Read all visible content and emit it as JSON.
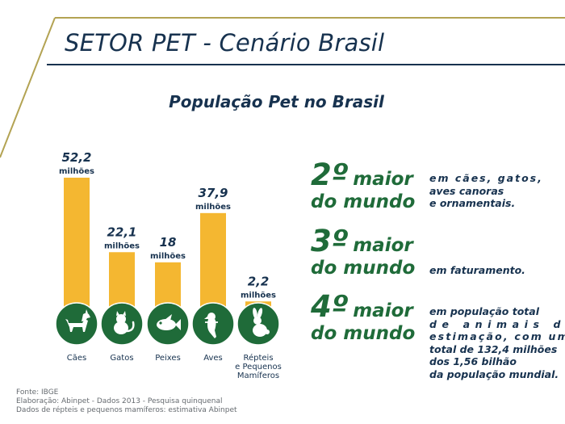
{
  "slide": {
    "title": "SETOR PET - Cenário Brasil",
    "colors": {
      "navy": "#17324f",
      "gold": "#b3a353",
      "green": "#1f6b39",
      "bar": "#f4b731"
    }
  },
  "chart_data": {
    "type": "bar",
    "title": "População Pet no Brasil",
    "categories": [
      "Cães",
      "Gatos",
      "Peixes",
      "Aves",
      "Répteis e Pequenos Mamíferos"
    ],
    "category_lines": [
      [
        "Cães"
      ],
      [
        "Gatos"
      ],
      [
        "Peixes"
      ],
      [
        "Aves"
      ],
      [
        "Répteis",
        "e Pequenos",
        "Mamíferos"
      ]
    ],
    "values": [
      52.2,
      22.1,
      18,
      37.9,
      2.2
    ],
    "value_labels": [
      "52,2",
      "22,1",
      "18",
      "37,9",
      "2,2"
    ],
    "unit_label": "milhões",
    "icons": [
      "dog-icon",
      "cat-icon",
      "fish-icon",
      "bird-icon",
      "rabbit-icon"
    ],
    "xlabel": "",
    "ylabel": "",
    "grid": false
  },
  "stats": [
    {
      "rank": "2º",
      "word": "maior",
      "sub": "do mundo",
      "desc": [
        "em cães, gatos,",
        "aves canoras",
        "e ornamentais."
      ]
    },
    {
      "rank": "3º",
      "word": "maior",
      "sub": "do mundo",
      "desc": [
        "em faturamento."
      ]
    },
    {
      "rank": "4º",
      "word": "maior",
      "sub": "do mundo",
      "desc": [
        "em população total",
        "de animais de",
        "estimação, com um",
        "total de 132,4 milhões",
        "dos 1,56 bilhão",
        "da população mundial."
      ]
    }
  ],
  "footer": {
    "source": "Fonte: IBGE",
    "elaboration": "Elaboração: Abinpet - Dados 2013 - Pesquisa quinquenal",
    "note": "Dados de répteis e pequenos mamíferos: estimativa Abinpet"
  }
}
